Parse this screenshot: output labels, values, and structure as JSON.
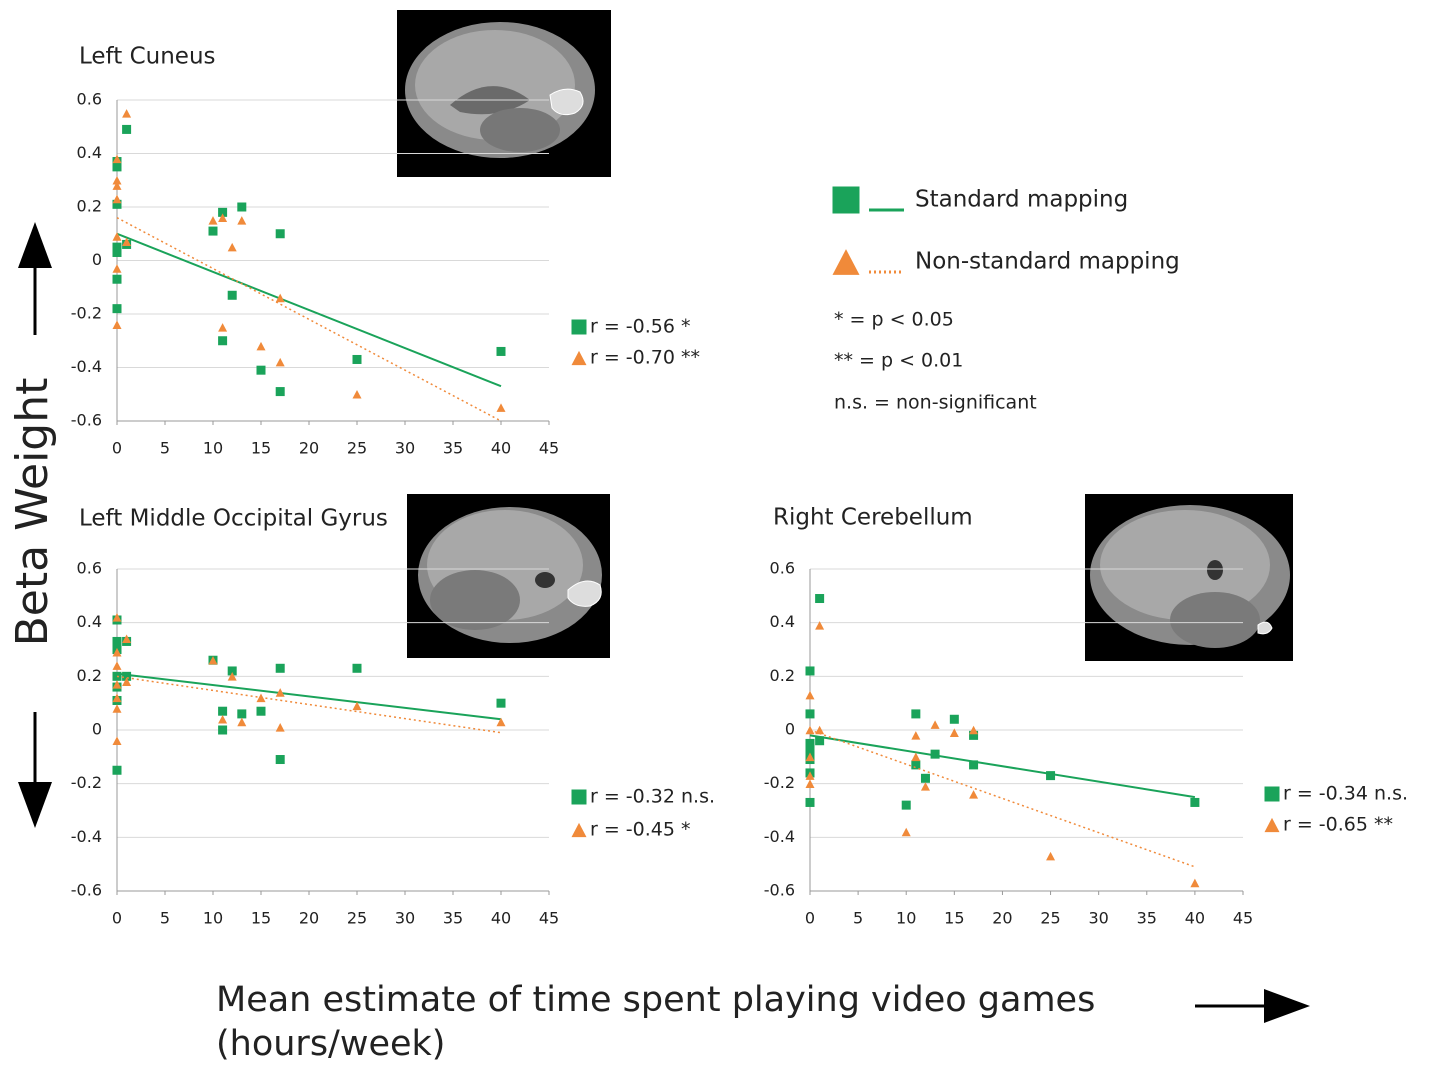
{
  "y_axis_label": "Beta Weight",
  "x_axis_label": [
    "Mean estimate of time spent playing video games",
    "(hours/week)"
  ],
  "legend": [
    {
      "name": "Standard mapping",
      "color": "#1aa35a",
      "marker": "square",
      "line": "solid"
    },
    {
      "name": "Non-standard mapping",
      "color": "#f08a3a",
      "marker": "triangle",
      "line": "dotted"
    }
  ],
  "notes": [
    "* = p < 0.05",
    "** = p < 0.01",
    "n.s. = non-significant"
  ],
  "chart_data": [
    {
      "type": "scatter",
      "title": "Left Cuneus",
      "xlim": [
        0,
        45
      ],
      "xticks": [
        0,
        5,
        10,
        15,
        20,
        25,
        30,
        35,
        40,
        45
      ],
      "ylim": [
        -0.6,
        0.6
      ],
      "yticks": [
        -0.6,
        -0.4,
        -0.2,
        0,
        0.2,
        0.4,
        0.6
      ],
      "grid": true,
      "series": [
        {
          "color": "#1aa35a",
          "marker": "square",
          "line": "solid",
          "x": [
            0,
            0,
            0,
            0,
            0,
            0,
            0,
            1,
            1,
            10,
            11,
            11,
            12,
            13,
            15,
            17,
            17,
            25,
            40
          ],
          "values": [
            0.37,
            0.35,
            0.21,
            0.05,
            0.03,
            -0.07,
            -0.18,
            0.49,
            0.06,
            0.11,
            0.18,
            -0.3,
            -0.13,
            0.2,
            -0.41,
            0.1,
            -0.49,
            -0.37,
            -0.34
          ],
          "fit": {
            "x": [
              0,
              40
            ],
            "values": [
              0.1,
              -0.47
            ]
          },
          "annotation": "r = -0.56 *"
        },
        {
          "color": "#f08a3a",
          "marker": "triangle",
          "line": "dotted",
          "x": [
            0,
            0,
            0,
            0,
            0,
            0,
            0,
            1,
            1,
            10,
            11,
            11,
            12,
            13,
            15,
            17,
            17,
            25,
            40
          ],
          "values": [
            0.38,
            0.3,
            0.28,
            0.23,
            0.09,
            -0.03,
            -0.24,
            0.55,
            0.07,
            0.15,
            0.16,
            -0.25,
            0.05,
            0.15,
            -0.32,
            -0.14,
            -0.38,
            -0.5,
            -0.55
          ],
          "fit": {
            "x": [
              0,
              40
            ],
            "values": [
              0.16,
              -0.6
            ]
          },
          "annotation": "r = -0.70 **"
        }
      ]
    },
    {
      "type": "scatter",
      "title": "Left Middle Occipital Gyrus",
      "xlim": [
        0,
        45
      ],
      "xticks": [
        0,
        5,
        10,
        15,
        20,
        25,
        30,
        35,
        40,
        45
      ],
      "ylim": [
        -0.6,
        0.6
      ],
      "yticks": [
        -0.6,
        -0.4,
        -0.2,
        0,
        0.2,
        0.4,
        0.6
      ],
      "grid": true,
      "series": [
        {
          "color": "#1aa35a",
          "marker": "square",
          "line": "solid",
          "x": [
            0,
            0,
            0,
            0,
            0,
            0,
            0,
            1,
            1,
            10,
            11,
            11,
            12,
            13,
            15,
            17,
            17,
            25,
            40
          ],
          "values": [
            0.41,
            0.33,
            0.3,
            0.2,
            0.16,
            0.11,
            -0.15,
            0.33,
            0.2,
            0.26,
            0.07,
            0.0,
            0.22,
            0.06,
            0.07,
            0.23,
            -0.11,
            0.23,
            0.1
          ],
          "fit": {
            "x": [
              0,
              40
            ],
            "values": [
              0.21,
              0.04
            ]
          },
          "annotation": "r = -0.32 n.s."
        },
        {
          "color": "#f08a3a",
          "marker": "triangle",
          "line": "dotted",
          "x": [
            0,
            0,
            0,
            0,
            0,
            0,
            0,
            1,
            1,
            10,
            11,
            12,
            13,
            15,
            17,
            17,
            25,
            40
          ],
          "values": [
            0.42,
            0.29,
            0.24,
            0.17,
            0.12,
            0.08,
            -0.04,
            0.34,
            0.18,
            0.26,
            0.04,
            0.2,
            0.03,
            0.12,
            0.14,
            0.01,
            0.09,
            0.03
          ],
          "fit": {
            "x": [
              0,
              40
            ],
            "values": [
              0.2,
              -0.01
            ]
          },
          "annotation": "r = -0.45 *"
        }
      ]
    },
    {
      "type": "scatter",
      "title": "Right Cerebellum",
      "xlim": [
        0,
        45
      ],
      "xticks": [
        0,
        5,
        10,
        15,
        20,
        25,
        30,
        35,
        40,
        45
      ],
      "ylim": [
        -0.6,
        0.6
      ],
      "yticks": [
        -0.6,
        -0.4,
        -0.2,
        0,
        0.2,
        0.4,
        0.6
      ],
      "grid": true,
      "series": [
        {
          "color": "#1aa35a",
          "marker": "square",
          "line": "solid",
          "x": [
            0,
            0,
            0,
            0,
            0,
            0,
            0,
            1,
            1,
            10,
            11,
            11,
            12,
            13,
            15,
            17,
            17,
            25,
            40
          ],
          "values": [
            0.22,
            0.06,
            -0.05,
            -0.08,
            -0.11,
            -0.16,
            -0.27,
            0.49,
            -0.04,
            -0.28,
            0.06,
            -0.13,
            -0.18,
            -0.09,
            0.04,
            -0.02,
            -0.13,
            -0.17,
            -0.27
          ],
          "fit": {
            "x": [
              0,
              40
            ],
            "values": [
              -0.02,
              -0.25
            ]
          },
          "annotation": "r = -0.34 n.s."
        },
        {
          "color": "#f08a3a",
          "marker": "triangle",
          "line": "dotted",
          "x": [
            0,
            0,
            0,
            0,
            0,
            1,
            1,
            10,
            11,
            11,
            12,
            13,
            15,
            17,
            17,
            25,
            40
          ],
          "values": [
            0.13,
            0.0,
            -0.1,
            -0.17,
            -0.2,
            0.39,
            0.0,
            -0.38,
            -0.02,
            -0.1,
            -0.21,
            0.02,
            -0.01,
            0.0,
            -0.24,
            -0.47,
            -0.57
          ],
          "fit": {
            "x": [
              0,
              40
            ],
            "values": [
              0.0,
              -0.51
            ]
          },
          "annotation": "r = -0.65 **"
        }
      ]
    }
  ]
}
